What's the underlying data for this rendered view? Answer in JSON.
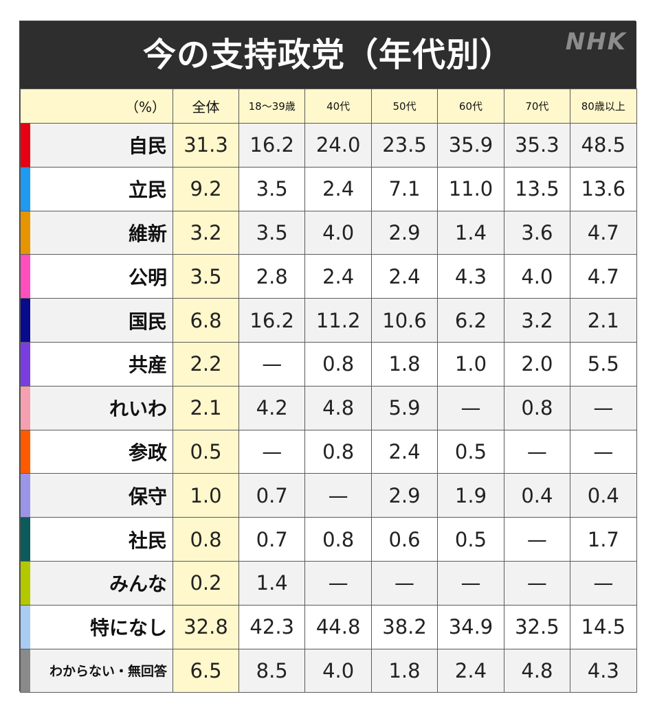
{
  "title": "今の支持政党（年代別）",
  "logo": "NHK",
  "chart_data": {
    "type": "table",
    "title": "今の支持政党（年代別）",
    "unit_label": "（%）",
    "columns": [
      "全体",
      "18～39歳",
      "40代",
      "50代",
      "60代",
      "70代",
      "80歳以上"
    ],
    "rows": [
      {
        "party": "自民",
        "color": "#e60012",
        "values": [
          "31.3",
          "16.2",
          "24.0",
          "23.5",
          "35.9",
          "35.3",
          "48.5"
        ]
      },
      {
        "party": "立民",
        "color": "#1e9bf0",
        "values": [
          "9.2",
          "3.5",
          "2.4",
          "7.1",
          "11.0",
          "13.5",
          "13.6"
        ]
      },
      {
        "party": "維新",
        "color": "#e69500",
        "values": [
          "3.2",
          "3.5",
          "4.0",
          "2.9",
          "1.4",
          "3.6",
          "4.7"
        ]
      },
      {
        "party": "公明",
        "color": "#ff4fbf",
        "values": [
          "3.5",
          "2.8",
          "2.4",
          "2.4",
          "4.3",
          "4.0",
          "4.7"
        ]
      },
      {
        "party": "国民",
        "color": "#0a0a8c",
        "values": [
          "6.8",
          "16.2",
          "11.2",
          "10.6",
          "6.2",
          "3.2",
          "2.1"
        ]
      },
      {
        "party": "共産",
        "color": "#7a3de0",
        "values": [
          "2.2",
          "—",
          "0.8",
          "1.8",
          "1.0",
          "2.0",
          "5.5"
        ]
      },
      {
        "party": "れいわ",
        "color": "#f4a0b0",
        "values": [
          "2.1",
          "4.2",
          "4.8",
          "5.9",
          "—",
          "0.8",
          "—"
        ]
      },
      {
        "party": "参政",
        "color": "#ff5a00",
        "values": [
          "0.5",
          "—",
          "0.8",
          "2.4",
          "0.5",
          "—",
          "—"
        ]
      },
      {
        "party": "保守",
        "color": "#9b95e8",
        "values": [
          "1.0",
          "0.7",
          "—",
          "2.9",
          "1.9",
          "0.4",
          "0.4"
        ]
      },
      {
        "party": "社民",
        "color": "#0d5a5a",
        "values": [
          "0.8",
          "0.7",
          "0.8",
          "0.6",
          "0.5",
          "—",
          "1.7"
        ]
      },
      {
        "party": "みんな",
        "color": "#b4c800",
        "values": [
          "0.2",
          "1.4",
          "—",
          "—",
          "—",
          "—",
          "—"
        ]
      },
      {
        "party": "特になし",
        "color": "#a8ccf4",
        "values": [
          "32.8",
          "42.3",
          "44.8",
          "38.2",
          "34.9",
          "32.5",
          "14.5"
        ]
      },
      {
        "party": "わからない・無回答",
        "color": "#8a8a8a",
        "values": [
          "6.5",
          "8.5",
          "4.0",
          "1.8",
          "2.4",
          "4.8",
          "4.3"
        ]
      }
    ]
  }
}
